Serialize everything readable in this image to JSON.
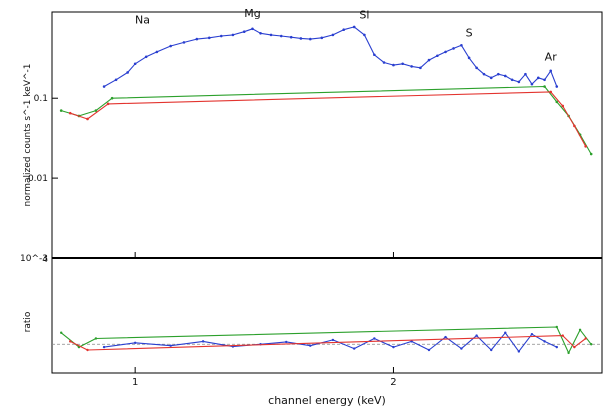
{
  "chart_data": [
    {
      "type": "line",
      "panel": "spectrum",
      "ylabel": "normalized counts s^-1 keV^-1",
      "xlabel": "",
      "xscale": "log",
      "yscale": "log",
      "xlim": [
        0.8,
        3.5
      ],
      "ylim": [
        0.001,
        1.2
      ],
      "x_ticks": [
        1,
        2
      ],
      "y_ticks": [
        {
          "value": 0.1,
          "label": "0.1"
        },
        {
          "value": 0.01,
          "label": "0.01"
        },
        {
          "value": 0.001,
          "label": "10^-3"
        }
      ],
      "annotations": [
        {
          "label": "Na",
          "x": 1.02,
          "y": 0.72
        },
        {
          "label": "Mg",
          "x": 1.37,
          "y": 0.88
        },
        {
          "label": "Si",
          "x": 1.85,
          "y": 0.84
        },
        {
          "label": "S",
          "x": 2.45,
          "y": 0.5
        },
        {
          "label": "Ar",
          "x": 3.05,
          "y": 0.25
        }
      ],
      "series": [
        {
          "color": "#2a3fd0",
          "x": [
            0.92,
            0.95,
            0.98,
            1.0,
            1.03,
            1.06,
            1.1,
            1.14,
            1.18,
            1.22,
            1.26,
            1.3,
            1.34,
            1.37,
            1.4,
            1.44,
            1.48,
            1.52,
            1.56,
            1.6,
            1.65,
            1.7,
            1.75,
            1.8,
            1.85,
            1.9,
            1.95,
            2.0,
            2.05,
            2.1,
            2.15,
            2.2,
            2.25,
            2.3,
            2.35,
            2.4,
            2.45,
            2.5,
            2.55,
            2.6,
            2.65,
            2.7,
            2.75,
            2.8,
            2.85,
            2.9,
            2.95,
            3.0,
            3.05,
            3.1
          ],
          "y": [
            0.14,
            0.17,
            0.21,
            0.27,
            0.33,
            0.38,
            0.45,
            0.5,
            0.55,
            0.57,
            0.6,
            0.62,
            0.68,
            0.74,
            0.65,
            0.62,
            0.6,
            0.58,
            0.56,
            0.55,
            0.57,
            0.62,
            0.72,
            0.78,
            0.62,
            0.35,
            0.28,
            0.26,
            0.27,
            0.25,
            0.24,
            0.3,
            0.34,
            0.38,
            0.42,
            0.46,
            0.32,
            0.24,
            0.2,
            0.18,
            0.2,
            0.19,
            0.17,
            0.16,
            0.2,
            0.15,
            0.18,
            0.17,
            0.22,
            0.14
          ]
        },
        {
          "color": "#2ca02c",
          "x": [
            0.82,
            0.86,
            0.9,
            0.94,
            3.0,
            3.1,
            3.2,
            3.3,
            3.4
          ],
          "y": [
            0.07,
            0.06,
            0.07,
            0.1,
            0.14,
            0.09,
            0.06,
            0.035,
            0.02
          ]
        },
        {
          "color": "#e3342f",
          "x": [
            0.84,
            0.88,
            0.93,
            3.05,
            3.15,
            3.25,
            3.35
          ],
          "y": [
            0.065,
            0.055,
            0.085,
            0.12,
            0.08,
            0.045,
            0.025
          ]
        }
      ]
    },
    {
      "type": "line",
      "panel": "residuals",
      "ylabel": "ratio",
      "xlabel": "channel energy (keV)",
      "xscale": "log",
      "xlim": [
        0.8,
        3.5
      ],
      "ylim": [
        0,
        4
      ],
      "x_ticks": [
        1,
        2
      ],
      "y_ticks": [
        {
          "value": 4,
          "label": "4"
        }
      ],
      "series": [
        {
          "color": "#2a3fd0",
          "x": [
            0.92,
            1.0,
            1.1,
            1.2,
            1.3,
            1.4,
            1.5,
            1.6,
            1.7,
            1.8,
            1.9,
            2.0,
            2.1,
            2.2,
            2.3,
            2.4,
            2.5,
            2.6,
            2.7,
            2.8,
            2.9,
            3.0,
            3.1
          ],
          "y": [
            0.9,
            1.05,
            0.95,
            1.1,
            0.92,
            1.0,
            1.08,
            0.95,
            1.15,
            0.85,
            1.2,
            0.9,
            1.1,
            0.8,
            1.25,
            0.85,
            1.3,
            0.8,
            1.4,
            0.75,
            1.35,
            1.1,
            0.9
          ]
        },
        {
          "color": "#2ca02c",
          "x": [
            0.82,
            0.86,
            0.9,
            3.1,
            3.2,
            3.3,
            3.4
          ],
          "y": [
            1.4,
            0.9,
            1.2,
            1.6,
            0.7,
            1.5,
            1.0
          ]
        },
        {
          "color": "#e3342f",
          "x": [
            0.84,
            0.88,
            3.15,
            3.25,
            3.35
          ],
          "y": [
            1.1,
            0.8,
            1.3,
            0.9,
            1.2
          ]
        }
      ]
    }
  ]
}
